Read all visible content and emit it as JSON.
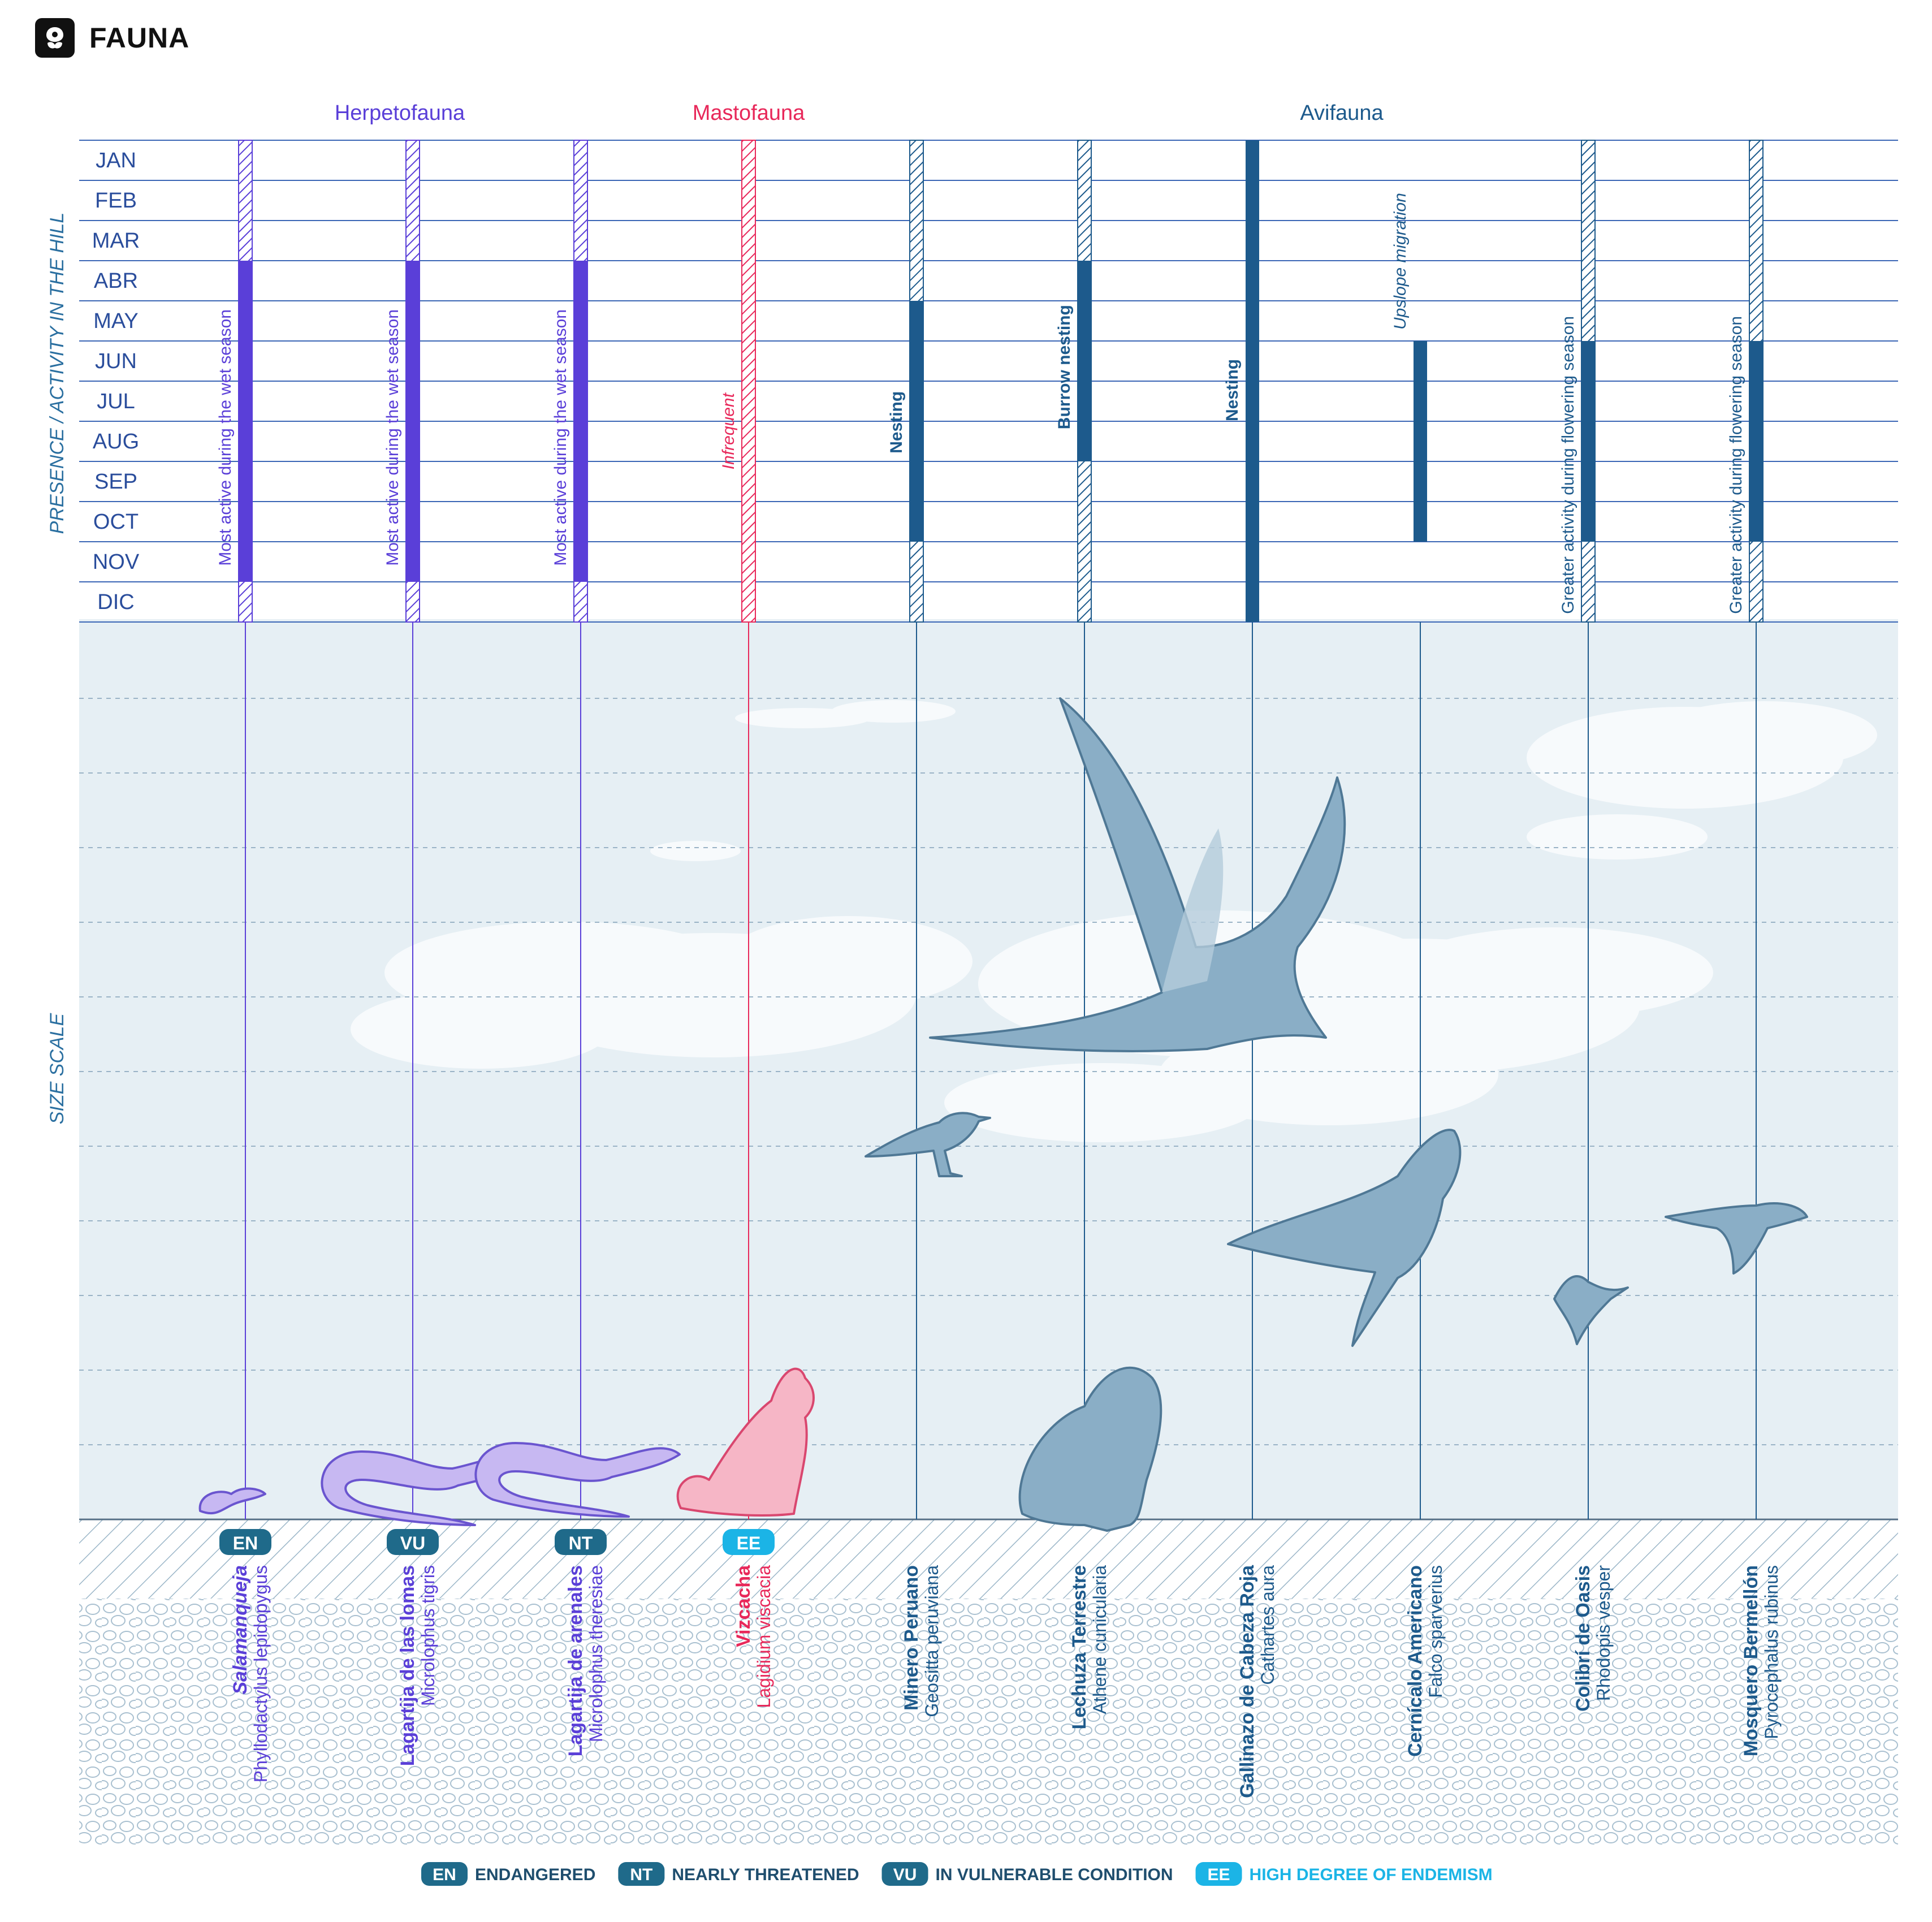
{
  "header": {
    "title": "FAUNA",
    "icon": "leaf-icon"
  },
  "colors": {
    "herpeto": "#5a3fd8",
    "masto": "#e8285a",
    "avi": "#1d5a8c",
    "grid": "#3b66b5",
    "sky": "#e6eff4",
    "label": "#2a4d9c",
    "badge": "#1f6a8a",
    "badge_ee": "#1bb4e6"
  },
  "groups": [
    {
      "label": "Herpetofauna",
      "color": "#5a3fd8"
    },
    {
      "label": "Mastofauna",
      "color": "#e8285a"
    },
    {
      "label": "Avifauna",
      "color": "#1d5a8c"
    }
  ],
  "axis": {
    "presence": "PRESENCE / ACTIVITY  IN THE HILL",
    "size": "SIZE SCALE"
  },
  "months": [
    "JAN",
    "FEB",
    "MAR",
    "ABR",
    "MAY",
    "JUN",
    "JUL",
    "AUG",
    "SEP",
    "OCT",
    "NOV",
    "DIC"
  ],
  "species": [
    {
      "common": "Salamanqueja",
      "scientific": "Phyllodactylus lepidopygus",
      "status": "EN",
      "group": "herpeto",
      "present": [
        1,
        12
      ],
      "active": [
        4,
        11
      ],
      "note": "Most active during the wet season",
      "note_italic": false,
      "icon": "gecko-icon",
      "size": 0.06
    },
    {
      "common": "Lagartija de las lomas",
      "scientific": "Microlophus tigris",
      "status": "VU",
      "group": "herpeto",
      "present": [
        1,
        12
      ],
      "active": [
        4,
        11
      ],
      "note": "Most active during the wet season",
      "note_italic": false,
      "icon": "lizard-icon",
      "size": 0.12
    },
    {
      "common": "Lagartija de arenales",
      "scientific": "Microlophus theresiae",
      "status": "NT",
      "group": "herpeto",
      "present": [
        1,
        12
      ],
      "active": [
        4,
        11
      ],
      "note": "Most active during the wet season",
      "note_italic": false,
      "icon": "lizard-icon",
      "size": 0.1
    },
    {
      "common": "Vizcacha",
      "scientific": "Lagidium viscacia",
      "status": "EE",
      "group": "masto",
      "present": [
        1,
        12
      ],
      "active": null,
      "note": "Infrequent",
      "note_italic": true,
      "icon": "vizcacha-icon",
      "size": 0.19
    },
    {
      "common": "Minero Peruano",
      "scientific": "Geositta peruviana",
      "status": "",
      "group": "avi",
      "present": [
        1,
        12
      ],
      "active": [
        5,
        10
      ],
      "note": "Nesting",
      "note_italic": false,
      "icon": "miner-bird-icon",
      "size": 0.09
    },
    {
      "common": "Lechuza Terrestre",
      "scientific": "Athene cunicularia",
      "status": "",
      "group": "avi",
      "present": [
        1,
        12
      ],
      "active": [
        4,
        8
      ],
      "note": "Burrow nesting",
      "note_italic": false,
      "icon": "owl-icon",
      "size": 0.2
    },
    {
      "common": "Gallinazo de Cabeza Roja",
      "scientific": "Cathartes aura",
      "status": "",
      "group": "avi",
      "present": null,
      "active": [
        1,
        12
      ],
      "note": "Nesting",
      "note_italic": false,
      "icon": "vulture-icon",
      "size": 1.0
    },
    {
      "common": "Cernícalo Americano",
      "scientific": "Falco sparverius",
      "status": "",
      "group": "avi",
      "present": null,
      "active": [
        6,
        10
      ],
      "note": "Upslope migration",
      "note_italic": true,
      "icon": "kestrel-icon",
      "size": 0.3
    },
    {
      "common": "Colibrí de Oasis",
      "scientific": "Rhodopis vesper",
      "status": "",
      "group": "avi",
      "present": [
        1,
        12
      ],
      "active": [
        6,
        10
      ],
      "note": "Greater activity during flowering season",
      "note_italic": false,
      "icon": "hummingbird-icon",
      "size": 0.08
    },
    {
      "common": "Mosquero Bermellón",
      "scientific": "Pyrocephalus rubinus",
      "status": "",
      "group": "avi",
      "present": [
        1,
        12
      ],
      "active": [
        6,
        10
      ],
      "note": "Greater activity during flowering season",
      "note_italic": false,
      "icon": "flycatcher-icon",
      "size": 0.1
    }
  ],
  "legend": [
    {
      "code": "EN",
      "label": "ENDANGERED",
      "color": "#1f6a8a"
    },
    {
      "code": "NT",
      "label": "NEARLY THREATENED",
      "color": "#1f6a8a"
    },
    {
      "code": "VU",
      "label": "IN VULNERABLE CONDITION",
      "color": "#1f6a8a"
    },
    {
      "code": "EE",
      "label": "HIGH DEGREE OF ENDEMISM",
      "color": "#1bb4e6"
    }
  ]
}
